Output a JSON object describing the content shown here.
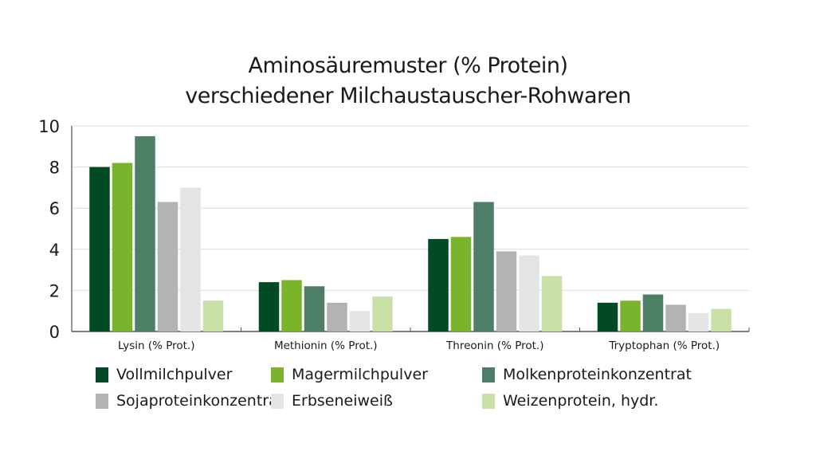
{
  "chart_data": {
    "type": "bar",
    "title": [
      "Aminosäuremuster (% Protein)",
      "verschiedener Milchaustauscher-Rohwaren"
    ],
    "xlabel": "",
    "ylabel": "",
    "ylim": [
      0,
      10
    ],
    "yticks": [
      "0",
      "2",
      "4",
      "6",
      "8",
      "10"
    ],
    "grid": true,
    "legend_position": "bottom",
    "categories": [
      "Lysin (% Prot.)",
      "Methionin (% Prot.)",
      "Threonin (% Prot.)",
      "Tryptophan (% Prot.)"
    ],
    "series": [
      {
        "name": "Vollmilchpulver",
        "color": "#004b23",
        "values": [
          8.0,
          2.4,
          4.5,
          1.4
        ]
      },
      {
        "name": "Magermilchpulver",
        "color": "#79b42c",
        "values": [
          8.2,
          2.5,
          4.6,
          1.5
        ]
      },
      {
        "name": "Molkenproteinkonzentrat",
        "color": "#4d7f66",
        "values": [
          9.5,
          2.2,
          6.3,
          1.8
        ]
      },
      {
        "name": "Sojaproteinkonzentrat",
        "color": "#b3b3b3",
        "values": [
          6.3,
          1.4,
          3.9,
          1.3
        ]
      },
      {
        "name": "Erbseneiweiß",
        "color": "#e4e4e4",
        "values": [
          7.0,
          1.0,
          3.7,
          0.9
        ]
      },
      {
        "name": "Weizenprotein, hydr.",
        "color": "#c9e1a7",
        "values": [
          1.5,
          1.7,
          2.7,
          1.1
        ]
      }
    ]
  }
}
